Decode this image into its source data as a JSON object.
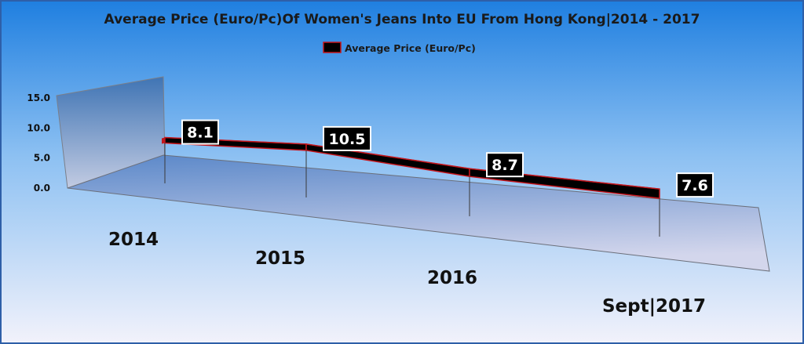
{
  "chart_data": {
    "type": "line",
    "title": "Average Price (Euro/Pc)Of Women's Jeans Into EU From Hong Kong|2014 - 2017",
    "categories": [
      "2014",
      "2015",
      "2016",
      "Sept|2017"
    ],
    "series": [
      {
        "name": "Average Price (Euro/Pc)",
        "values": [
          8.1,
          10.5,
          8.7,
          7.6
        ],
        "color": "#000000"
      }
    ],
    "data_labels": [
      "8.1",
      "10.5",
      "8.7",
      "7.6"
    ],
    "yticks": [
      "0.0",
      "5.0",
      "10.0",
      "15.0"
    ],
    "ylim": [
      0,
      15
    ],
    "xlabel": "",
    "ylabel": "",
    "legend": "top-center",
    "grid": false,
    "style": "3d-ribbon",
    "colors": {
      "ribbon": "#000000",
      "ribbon_edge": "#c4161c",
      "label_box": "#000000",
      "label_text": "#ffffff",
      "background_top": "#1f7fe0",
      "background_bottom": "#f2f2fb",
      "border": "#2e5fa8"
    }
  }
}
